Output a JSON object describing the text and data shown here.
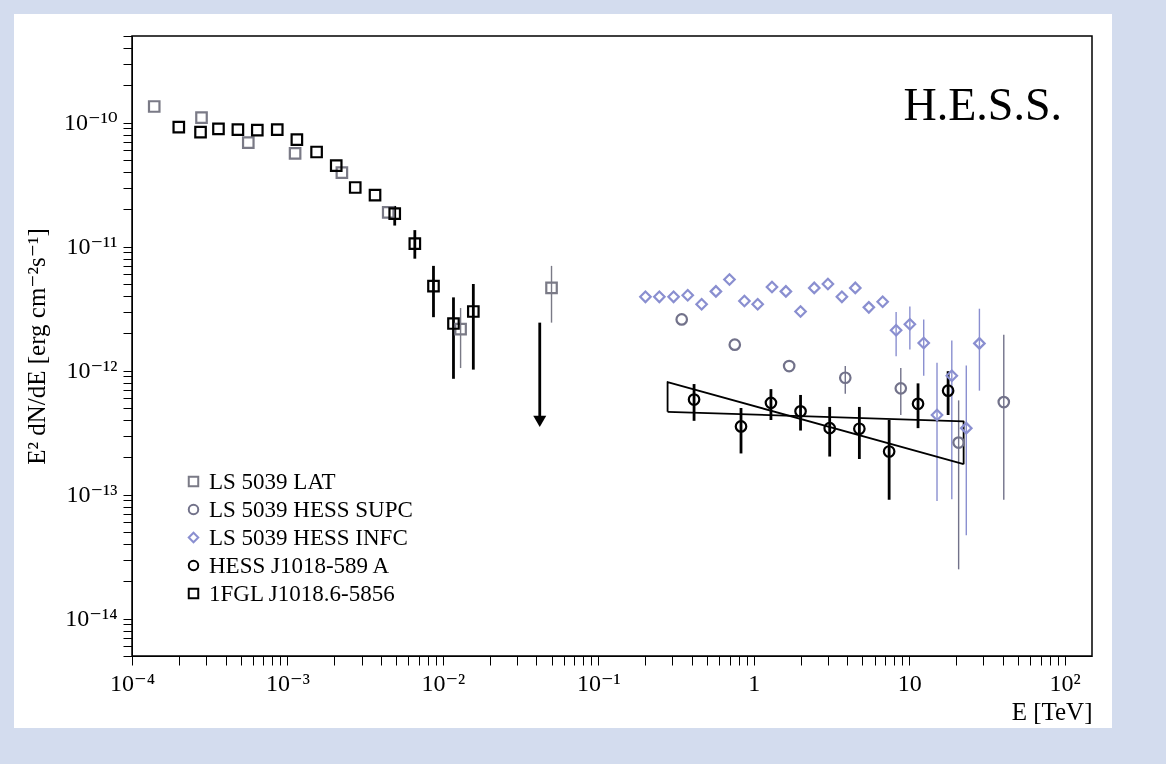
{
  "chart_data": {
    "type": "scatter",
    "xlabel": "E [TeV]",
    "ylabel": "E² dN/dE [erg cm⁻²s⁻¹]",
    "log": "xy",
    "legend": "bottom left",
    "annotations": [
      "H.E.S.S."
    ],
    "xlim": [
      0.0001,
      150
    ],
    "ylim": [
      5e-15,
      5e-10
    ],
    "xticks": [
      {
        "value": 0.0001,
        "label": "10⁻⁴"
      },
      {
        "value": 0.0002,
        "label": null
      },
      {
        "value": 0.0003,
        "label": null
      },
      {
        "value": 0.0004,
        "label": null
      },
      {
        "value": 0.0005,
        "label": null
      },
      {
        "value": 0.0006,
        "label": null
      },
      {
        "value": 0.0007,
        "label": null
      },
      {
        "value": 0.0008,
        "label": null
      },
      {
        "value": 0.0009,
        "label": null
      },
      {
        "value": 0.001,
        "label": "10⁻³"
      },
      {
        "value": 0.002,
        "label": null
      },
      {
        "value": 0.003,
        "label": null
      },
      {
        "value": 0.004,
        "label": null
      },
      {
        "value": 0.005,
        "label": null
      },
      {
        "value": 0.006,
        "label": null
      },
      {
        "value": 0.007,
        "label": null
      },
      {
        "value": 0.008,
        "label": null
      },
      {
        "value": 0.009,
        "label": null
      },
      {
        "value": 0.01,
        "label": "10⁻²"
      },
      {
        "value": 0.02,
        "label": null
      },
      {
        "value": 0.03,
        "label": null
      },
      {
        "value": 0.04,
        "label": null
      },
      {
        "value": 0.05,
        "label": null
      },
      {
        "value": 0.06,
        "label": null
      },
      {
        "value": 0.07,
        "label": null
      },
      {
        "value": 0.08,
        "label": null
      },
      {
        "value": 0.09,
        "label": null
      },
      {
        "value": 0.1,
        "label": "10⁻¹"
      },
      {
        "value": 0.2,
        "label": null
      },
      {
        "value": 0.3,
        "label": null
      },
      {
        "value": 0.4,
        "label": null
      },
      {
        "value": 0.5,
        "label": null
      },
      {
        "value": 0.6,
        "label": null
      },
      {
        "value": 0.7,
        "label": null
      },
      {
        "value": 0.8,
        "label": null
      },
      {
        "value": 0.9,
        "label": null
      },
      1,
      {
        "value": 2,
        "label": null
      },
      {
        "value": 3,
        "label": null
      },
      {
        "value": 4,
        "label": null
      },
      {
        "value": 5,
        "label": null
      },
      {
        "value": 6,
        "label": null
      },
      {
        "value": 7,
        "label": null
      },
      {
        "value": 8,
        "label": null
      },
      {
        "value": 9,
        "label": null
      },
      10,
      {
        "value": 20,
        "label": null
      },
      {
        "value": 30,
        "label": null
      },
      {
        "value": 40,
        "label": null
      },
      {
        "value": 50,
        "label": null
      },
      {
        "value": 60,
        "label": null
      },
      {
        "value": 70,
        "label": null
      },
      {
        "value": 80,
        "label": null
      },
      {
        "value": 90,
        "label": null
      },
      {
        "value": 100,
        "label": "10²"
      }
    ],
    "yticks": [
      {
        "value": 5e-15,
        "label": null
      },
      {
        "value": 6e-15,
        "label": null
      },
      {
        "value": 7e-15,
        "label": null
      },
      {
        "value": 8e-15,
        "label": null
      },
      {
        "value": 9e-15,
        "label": null
      },
      {
        "value": 1e-14,
        "label": "10⁻¹⁴"
      },
      {
        "value": 2e-14,
        "label": null
      },
      {
        "value": 3e-14,
        "label": null
      },
      {
        "value": 4e-14,
        "label": null
      },
      {
        "value": 5e-14,
        "label": null
      },
      {
        "value": 6e-14,
        "label": null
      },
      {
        "value": 7e-14,
        "label": null
      },
      {
        "value": 8e-14,
        "label": null
      },
      {
        "value": 9e-14,
        "label": null
      },
      {
        "value": 1e-13,
        "label": "10⁻¹³"
      },
      {
        "value": 2e-13,
        "label": null
      },
      {
        "value": 3e-13,
        "label": null
      },
      {
        "value": 4e-13,
        "label": null
      },
      {
        "value": 5e-13,
        "label": null
      },
      {
        "value": 6e-13,
        "label": null
      },
      {
        "value": 7e-13,
        "label": null
      },
      {
        "value": 8e-13,
        "label": null
      },
      {
        "value": 9e-13,
        "label": null
      },
      {
        "value": 1e-12,
        "label": "10⁻¹²"
      },
      {
        "value": 2e-12,
        "label": null
      },
      {
        "value": 3e-12,
        "label": null
      },
      {
        "value": 4e-12,
        "label": null
      },
      {
        "value": 5e-12,
        "label": null
      },
      {
        "value": 6e-12,
        "label": null
      },
      {
        "value": 7e-12,
        "label": null
      },
      {
        "value": 8e-12,
        "label": null
      },
      {
        "value": 9e-12,
        "label": null
      },
      {
        "value": 1e-11,
        "label": "10⁻¹¹"
      },
      {
        "value": 2e-11,
        "label": null
      },
      {
        "value": 3e-11,
        "label": null
      },
      {
        "value": 4e-11,
        "label": null
      },
      {
        "value": 5e-11,
        "label": null
      },
      {
        "value": 6e-11,
        "label": null
      },
      {
        "value": 7e-11,
        "label": null
      },
      {
        "value": 8e-11,
        "label": null
      },
      {
        "value": 9e-11,
        "label": null
      },
      {
        "value": 1e-10,
        "label": "10⁻¹⁰"
      },
      {
        "value": 2e-10,
        "label": null
      },
      {
        "value": 3e-10,
        "label": null
      },
      {
        "value": 4e-10,
        "label": null
      },
      {
        "value": 5e-10,
        "label": null
      }
    ],
    "series": [
      {
        "name": "LS 5039 LAT",
        "marker": "square",
        "color": "#7a7a86",
        "x": [
          0.000139,
          0.00028,
          0.00056,
          0.00112,
          0.00224,
          0.00445,
          0.013,
          0.05
        ],
        "values": [
          1.35e-10,
          1.1e-10,
          6.9e-11,
          5.65e-11,
          3.96e-11,
          1.89e-11,
          2.16e-12,
          4.65e-12
        ],
        "errors": [
          null,
          null,
          null,
          null,
          null,
          null,
          [
            1.05e-12,
            3.2e-12
          ],
          [
            2.44e-12,
            7e-12
          ]
        ]
      },
      {
        "name": "LS 5039 HESS SUPC",
        "marker": "circle",
        "color": "#72728a",
        "x": [
          0.344,
          0.755,
          1.69,
          3.88,
          8.83,
          20.8,
          40.6
        ],
        "values": [
          2.59e-12,
          1.62e-12,
          1.09e-12,
          8.77e-13,
          7.2e-13,
          2.63e-13,
          5.58e-13
        ],
        "errors": [
          null,
          null,
          null,
          [
            6.5e-13,
            1.09e-12
          ],
          [
            4.39e-13,
            1.05e-12
          ],
          [
            2.5e-14,
            5.76e-13
          ],
          [
            9.1e-14,
            1.95e-12
          ]
        ]
      },
      {
        "name": "LS 5039 HESS INFC",
        "marker": "diamond",
        "color": "#8a8fd0",
        "x": [
          0.201,
          0.247,
          0.305,
          0.376,
          0.462,
          0.571,
          0.698,
          0.871,
          1.06,
          1.31,
          1.61,
          2.0,
          2.45,
          3.0,
          3.69,
          4.5,
          5.5,
          6.75,
          8.24,
          10.1,
          12.4,
          15.1,
          18.8,
          23.3,
          28.3
        ],
        "values": [
          3.94e-12,
          3.94e-12,
          3.94e-12,
          4.06e-12,
          3.43e-12,
          4.36e-12,
          5.43e-12,
          3.65e-12,
          3.43e-12,
          4.73e-12,
          4.36e-12,
          3e-12,
          4.65e-12,
          5e-12,
          3.94e-12,
          4.65e-12,
          3.24e-12,
          3.6e-12,
          2.12e-12,
          2.37e-12,
          1.67e-12,
          4.39e-13,
          9.1e-13,
          3.44e-13,
          1.66e-12
        ],
        "errors": [
          null,
          null,
          null,
          null,
          null,
          null,
          null,
          null,
          null,
          null,
          null,
          null,
          null,
          null,
          null,
          null,
          null,
          null,
          [
            1.31e-12,
            2.97e-12
          ],
          [
            1.48e-12,
            3.3e-12
          ],
          [
            9.1e-13,
            2.59e-12
          ],
          [
            8.9e-14,
            1.16e-12
          ],
          [
            9.2e-14,
            1.75e-12
          ],
          [
            4.7e-14,
            1.1e-12
          ],
          [
            6.9e-13,
            3.16e-12
          ]
        ]
      },
      {
        "name": "HESS J1018-589 A",
        "marker": "circle",
        "color": "#000000",
        "x": [
          0.413,
          0.828,
          1.29,
          2.0,
          3.08,
          4.78,
          7.43,
          11.4,
          17.8
        ],
        "values": [
          5.85e-13,
          3.55e-13,
          5.5e-13,
          4.7e-13,
          3.44e-13,
          3.4e-13,
          2.23e-13,
          5.4e-13,
          6.9e-13
        ],
        "errors": [
          [
            3.94e-13,
            7.8e-13
          ],
          [
            2.15e-13,
            5e-13
          ],
          [
            4e-13,
            7.1e-13
          ],
          [
            3.29e-13,
            6.37e-13
          ],
          [
            2.03e-13,
            5.1e-13
          ],
          [
            1.94e-13,
            5.1e-13
          ],
          [
            9.1e-14,
            4e-13
          ],
          [
            3.44e-13,
            7.9e-13
          ],
          [
            4.39e-13,
            9.9e-13
          ]
        ]
      },
      {
        "name": "1FGL J1018.6-5856",
        "marker": "square",
        "color": "#000000",
        "x": [
          0.0002,
          0.000276,
          0.00036,
          0.00048,
          0.00064,
          0.00086,
          0.00115,
          0.00154,
          0.00206,
          0.00273,
          0.00366,
          0.0049,
          0.0066,
          0.0087,
          0.0117,
          0.0157
        ],
        "values": [
          9.2e-11,
          8.4e-11,
          8.9e-11,
          8.8e-11,
          8.7e-11,
          8.8e-11,
          7.3e-11,
          5.8e-11,
          4.5e-11,
          3e-11,
          2.6e-11,
          1.85e-11,
          1.06e-11,
          4.8e-12,
          2.4e-12,
          3e-12
        ],
        "errors": [
          null,
          null,
          null,
          null,
          null,
          null,
          null,
          null,
          null,
          null,
          null,
          [
            1.48e-11,
            2.13e-11
          ],
          [
            8e-12,
            1.36e-11
          ],
          [
            2.7e-12,
            7e-12
          ],
          [
            8.6e-13,
            3.9e-12
          ],
          [
            1.02e-12,
            5e-12
          ]
        ]
      },
      {
        "marker": "triangle",
        "color": "#000000",
        "x": [
          0.042
        ],
        "values": [
          3.9e-13
        ],
        "errors": [
          [
            3.9e-13,
            2.44e-12
          ]
        ]
      },
      {
        "type": "line",
        "marker": "none",
        "color": "#000000",
        "x": [
          0.279,
          0.279,
          22.4
        ],
        "values": [
          4.66e-13,
          8.1e-13,
          1.76e-13
        ]
      },
      {
        "type": "line",
        "marker": "none",
        "color": "#000000",
        "x": [
          0.279,
          22.4,
          22.4
        ],
        "values": [
          4.66e-13,
          3.9e-13,
          1.76e-13
        ]
      }
    ]
  }
}
